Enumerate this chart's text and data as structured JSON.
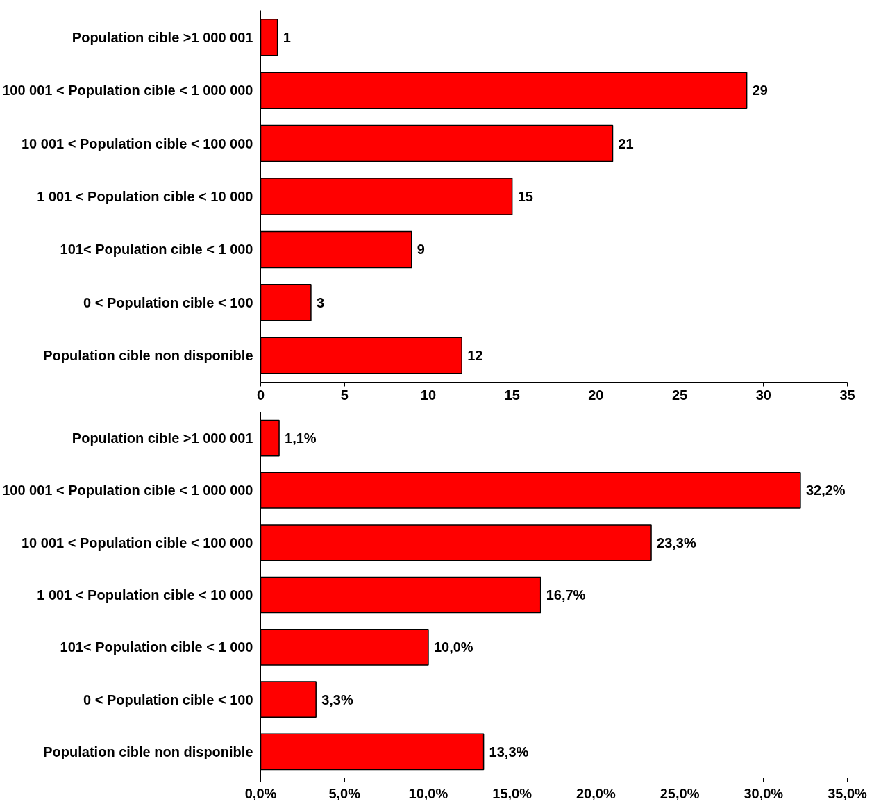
{
  "chart_data": [
    {
      "type": "bar",
      "orientation": "horizontal",
      "categories": [
        "Population cible >1 000 001",
        "100 001 < Population cible < 1 000 000",
        "10 001 < Population cible < 100 000",
        "1 001 < Population cible < 10 000",
        "101< Population cible < 1 000",
        "0 < Population cible < 100",
        "Population cible non disponible"
      ],
      "values": [
        1,
        29,
        21,
        15,
        9,
        3,
        12
      ],
      "color": "#ff0000",
      "xlim": [
        0,
        35
      ],
      "xticks": [
        0,
        5,
        10,
        15,
        20,
        25,
        30,
        35
      ],
      "data_labels": true,
      "grid": false
    },
    {
      "type": "bar",
      "orientation": "horizontal",
      "categories": [
        "Population cible >1 000 001",
        "100 001 < Population cible < 1 000 000",
        "10 001 < Population cible < 100 000",
        "1 001 < Population cible < 10 000",
        "101< Population cible < 1 000",
        "0 < Population cible < 100",
        "Population cible non disponible"
      ],
      "values": [
        1.1,
        32.2,
        23.3,
        16.7,
        10.0,
        3.3,
        13.3
      ],
      "value_labels": [
        "1,1%",
        "32,2%",
        "23,3%",
        "16,7%",
        "10,0%",
        "3,3%",
        "13,3%"
      ],
      "color": "#ff0000",
      "xlim": [
        0,
        35
      ],
      "xticks": [
        {
          "value": 0,
          "label": "0,0%"
        },
        {
          "value": 5,
          "label": "5,0%"
        },
        {
          "value": 10,
          "label": "10,0%"
        },
        {
          "value": 15,
          "label": "15,0%"
        },
        {
          "value": 20,
          "label": "20,0%"
        },
        {
          "value": 25,
          "label": "25,0%"
        },
        {
          "value": 30,
          "label": "30,0%"
        },
        {
          "value": 35,
          "label": "35,0%"
        }
      ],
      "grid": false
    }
  ]
}
